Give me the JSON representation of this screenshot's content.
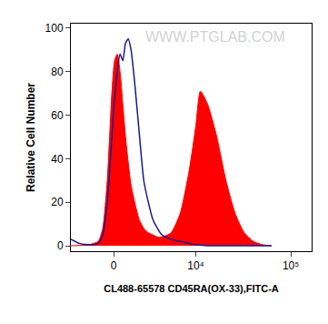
{
  "chart_data": {
    "type": "area",
    "x_label": "CL488-65578 CD45RA(OX-33),FITC-A",
    "y_label": "Relative Cell Number",
    "watermark": "WWW.PTGLAB.COM",
    "xlim": [
      -3456,
      165000
    ],
    "ylim": [
      -2.5,
      102
    ],
    "xticks": [
      0,
      {
        "value": 10000,
        "label": "10⁴"
      },
      {
        "value": 100000,
        "label": "10⁵"
      }
    ],
    "yticks": [
      0,
      20,
      40,
      60,
      80,
      100
    ],
    "grid": false,
    "series": [
      {
        "type": "area",
        "color": "#ff0000",
        "x": [
          -3456,
          -1776,
          -1082,
          -754,
          -438,
          -124,
          62,
          249,
          436,
          626,
          819,
          1015,
          1215,
          1490,
          1850,
          2232,
          2640,
          3082,
          3558,
          4080,
          5275,
          6731,
          8499,
          10000,
          11200,
          13400,
          16770,
          20940,
          26120,
          32520,
          40520,
          50510,
          62900
        ],
        "values": [
          0,
          0.5,
          2,
          8,
          30,
          70,
          85,
          88,
          80,
          65,
          50,
          38,
          28,
          20,
          12,
          8,
          6,
          5,
          4,
          4,
          6,
          15,
          35,
          55,
          71,
          65,
          50,
          30,
          15,
          6,
          2,
          0.5,
          0
        ]
      },
      {
        "type": "line",
        "color": "#1a1a8c",
        "x": [
          -3456,
          -2556,
          -1776,
          -1082,
          -754,
          -438,
          -124,
          62,
          249,
          436,
          626,
          819,
          1015,
          1215,
          1490,
          1850,
          2232,
          2640,
          3082,
          3558,
          4080,
          5275,
          6731,
          8499,
          10000,
          13400,
          26120,
          62900
        ],
        "values": [
          3,
          1,
          0.5,
          1,
          5,
          20,
          50,
          68,
          80,
          88,
          85,
          93,
          95,
          90,
          75,
          52,
          30,
          20,
          12,
          8,
          5,
          3,
          2,
          1,
          0.5,
          0,
          0,
          0
        ]
      }
    ]
  }
}
